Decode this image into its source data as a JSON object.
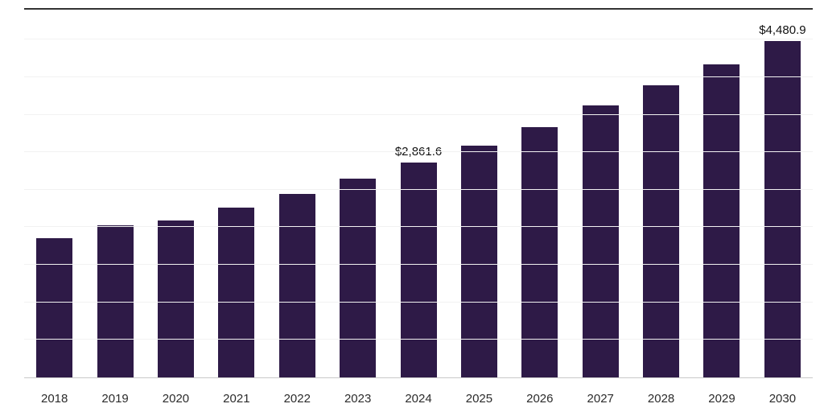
{
  "chart_data": {
    "type": "bar",
    "title": "",
    "xlabel": "",
    "ylabel": "",
    "categories": [
      "2018",
      "2019",
      "2020",
      "2021",
      "2022",
      "2023",
      "2024",
      "2025",
      "2026",
      "2027",
      "2028",
      "2029",
      "2030"
    ],
    "values": [
      1855,
      2025,
      2090,
      2260,
      2450,
      2645,
      2861.6,
      3090,
      3340,
      3620,
      3890,
      4175,
      4480.9
    ],
    "data_labels": {
      "2024": "$2,861.6",
      "2030": "$4,480.9"
    },
    "ylim": [
      0,
      4900
    ],
    "grid": true,
    "grid_step": 500,
    "legend_position": "none",
    "bar_color": "#2E1A47",
    "axis_line_color": "#c9c9c9",
    "gridline_color": "#f2f2f2",
    "label_color": "#111111"
  }
}
